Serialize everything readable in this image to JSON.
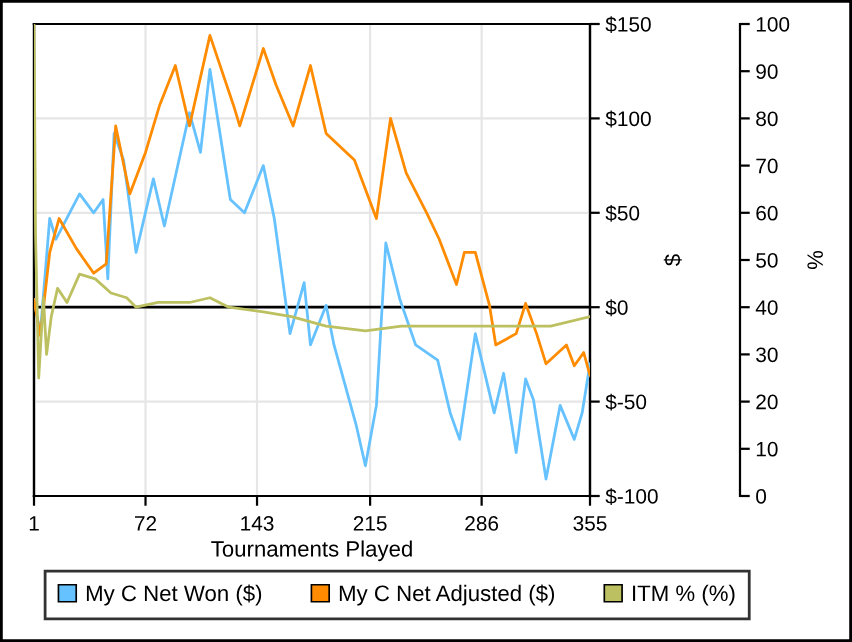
{
  "chart_data": {
    "type": "line",
    "xlabel": "Tournaments Played",
    "y2label": "$",
    "y3label": "%",
    "xlim": [
      1,
      355
    ],
    "xticks": [
      1,
      72,
      143,
      215,
      286,
      355
    ],
    "y2lim": [
      -100,
      150
    ],
    "y2ticks": [
      {
        "value": -100,
        "label": "$-100"
      },
      {
        "value": -50,
        "label": "$-50"
      },
      {
        "value": 0,
        "label": "$0"
      },
      {
        "value": 50,
        "label": "$50"
      },
      {
        "value": 100,
        "label": "$100"
      },
      {
        "value": 150,
        "label": "$150"
      }
    ],
    "y3lim": [
      0,
      100
    ],
    "y3ticks": [
      0,
      10,
      20,
      30,
      40,
      50,
      60,
      70,
      80,
      90,
      100
    ],
    "grid": true,
    "legend": "bottom",
    "ref_lines": [
      {
        "axis": "y2",
        "value": 0,
        "color": "#000000"
      }
    ],
    "series": [
      {
        "name": "My C Net Won ($)",
        "color": "#66c2ff",
        "axis": "y2",
        "x": [
          1,
          5,
          11,
          15,
          30,
          39,
          45,
          48,
          52,
          58,
          66,
          77,
          84,
          100,
          107,
          113,
          126,
          135,
          147,
          154,
          164,
          173,
          177,
          187,
          192,
          206,
          212,
          219,
          225,
          234,
          244,
          258,
          266,
          272,
          282,
          294,
          300,
          308,
          314,
          319,
          327,
          336,
          345,
          350,
          355
        ],
        "values": [
          4,
          -14,
          47,
          36,
          60,
          50,
          57,
          15,
          92,
          78,
          29,
          68,
          43,
          103,
          82,
          126,
          57,
          50,
          75,
          47,
          -14,
          13,
          -20,
          1,
          -20,
          -62,
          -84,
          -52,
          34,
          4,
          -20,
          -28,
          -56,
          -70,
          -14,
          -56,
          -35,
          -77,
          -38,
          -49,
          -91,
          -52,
          -70,
          -56,
          -30
        ]
      },
      {
        "name": "My C Net Adjusted ($)",
        "color": "#ff8c00",
        "axis": "y2",
        "x": [
          1,
          5,
          11,
          17,
          28,
          39,
          47,
          53,
          62,
          72,
          81,
          91,
          100,
          113,
          128,
          132,
          147,
          155,
          166,
          177,
          187,
          205,
          219,
          228,
          238,
          251,
          259,
          270,
          275,
          282,
          291,
          295,
          308,
          314,
          321,
          327,
          340,
          345,
          351,
          355
        ],
        "values": [
          4,
          -15,
          29,
          47,
          31,
          18,
          23,
          96,
          60,
          82,
          107,
          128,
          96,
          144,
          107,
          96,
          137,
          118,
          96,
          128,
          92,
          78,
          47,
          100,
          71,
          50,
          36,
          12,
          29,
          29,
          1,
          -20,
          -14,
          2,
          -14,
          -30,
          -20,
          -31,
          -24,
          -36
        ]
      },
      {
        "name": "ITM % (%)",
        "color": "#bcc060",
        "axis": "y3",
        "x": [
          1,
          2,
          4,
          7,
          9,
          12,
          16,
          22,
          30,
          40,
          50,
          60,
          66,
          80,
          100,
          113,
          125,
          147,
          165,
          187,
          212,
          235,
          260,
          300,
          330,
          355
        ],
        "values": [
          100,
          55,
          25,
          42,
          30,
          38,
          44,
          41,
          47,
          46,
          43,
          42,
          40,
          41,
          41,
          42,
          40,
          39,
          38,
          36,
          35,
          36,
          36,
          36,
          36,
          38
        ]
      }
    ]
  }
}
